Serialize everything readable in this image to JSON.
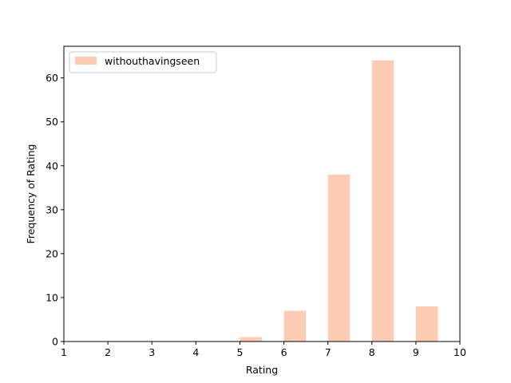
{
  "chart_data": {
    "type": "bar",
    "x": [
      5.25,
      6.25,
      7.25,
      8.25,
      9.25
    ],
    "values": [
      1,
      7,
      38,
      64,
      8
    ],
    "series": [
      {
        "name": "withouthavingseen",
        "color": "#fccdb4"
      }
    ],
    "xlabel": "Rating",
    "ylabel": "Frequency of Rating",
    "xlim": [
      1,
      10
    ],
    "ylim": [
      0,
      67.2
    ],
    "xticks": [
      1,
      2,
      3,
      4,
      5,
      6,
      7,
      8,
      9,
      10
    ],
    "yticks": [
      0,
      10,
      20,
      30,
      40,
      50,
      60
    ],
    "bar_width": 0.5,
    "grid": false,
    "legend_position": "top-left"
  }
}
